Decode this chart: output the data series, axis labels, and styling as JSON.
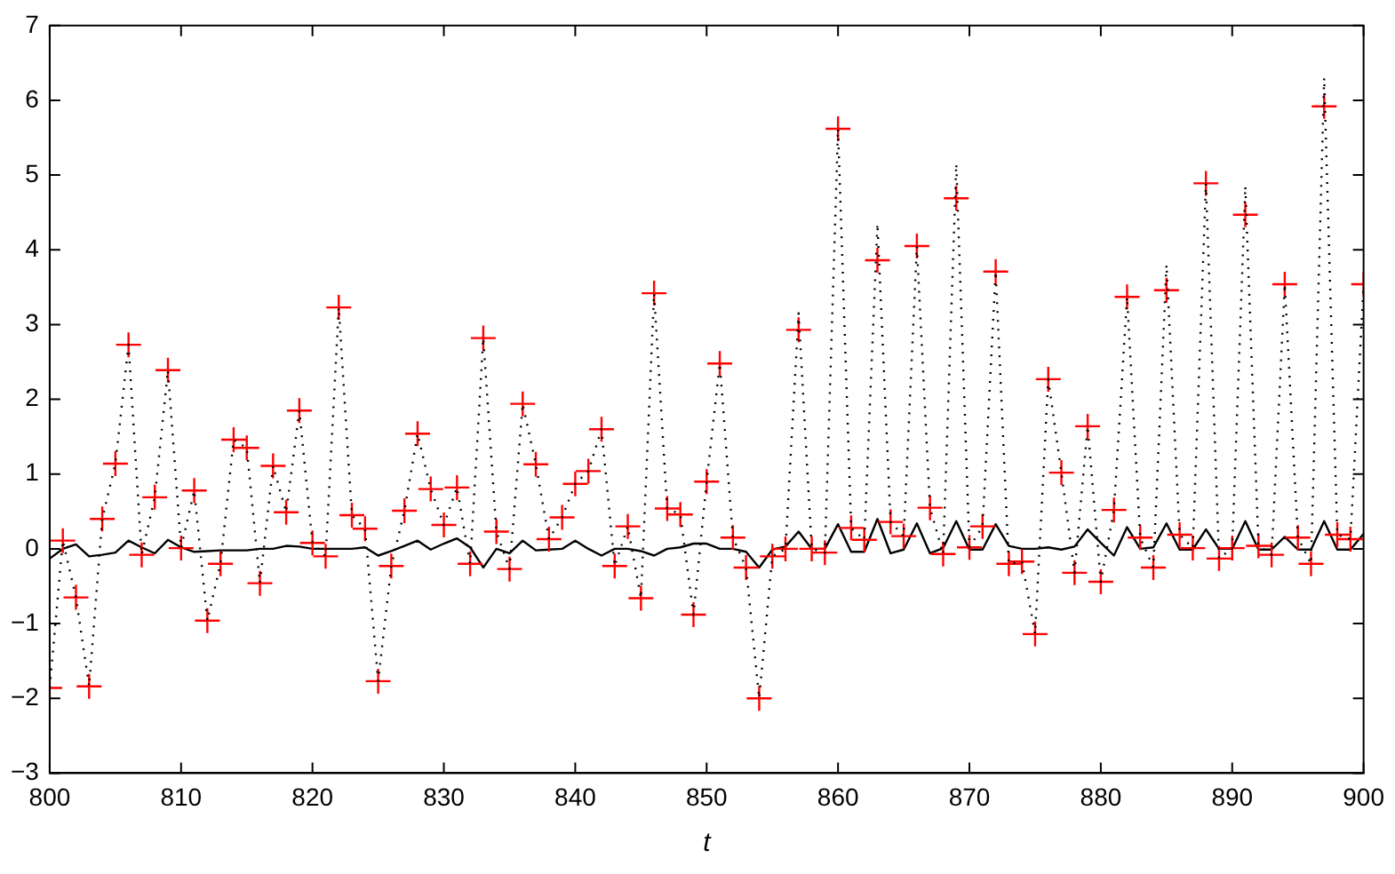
{
  "chart_data": {
    "type": "line",
    "xlabel": "t",
    "x": [
      800,
      801,
      802,
      803,
      804,
      805,
      806,
      807,
      808,
      809,
      810,
      811,
      812,
      813,
      814,
      815,
      816,
      817,
      818,
      819,
      820,
      821,
      822,
      823,
      824,
      825,
      826,
      827,
      828,
      829,
      830,
      831,
      832,
      833,
      834,
      835,
      836,
      837,
      838,
      839,
      840,
      841,
      842,
      843,
      844,
      845,
      846,
      847,
      848,
      849,
      850,
      851,
      852,
      853,
      854,
      855,
      856,
      857,
      858,
      859,
      860,
      861,
      862,
      863,
      864,
      865,
      866,
      867,
      868,
      869,
      870,
      871,
      872,
      873,
      874,
      875,
      876,
      877,
      878,
      879,
      880,
      881,
      882,
      883,
      884,
      885,
      886,
      887,
      888,
      889,
      890,
      891,
      892,
      893,
      894,
      895,
      896,
      897,
      898,
      899,
      900
    ],
    "xlim": [
      800,
      900
    ],
    "xticks": [
      800,
      810,
      820,
      830,
      840,
      850,
      860,
      870,
      880,
      890,
      900
    ],
    "ylim": [
      -3,
      7
    ],
    "yticks": [
      -3,
      -2,
      -1,
      0,
      1,
      2,
      3,
      4,
      5,
      6,
      7
    ],
    "grid": false,
    "legend": false,
    "series": [
      {
        "color": "#000000",
        "line_style": "dotted",
        "marker": "none",
        "values": [
          -1.86,
          0.11,
          -0.65,
          -1.84,
          0.4,
          1.14,
          2.73,
          -0.08,
          0.69,
          2.39,
          0.01,
          0.78,
          -0.96,
          -0.2,
          1.46,
          1.35,
          -0.46,
          1.11,
          0.49,
          1.85,
          0.08,
          -0.1,
          3.23,
          0.45,
          0.27,
          -1.77,
          -0.23,
          0.51,
          1.54,
          0.8,
          0.32,
          0.82,
          -0.2,
          2.82,
          0.23,
          -0.27,
          1.94,
          1.13,
          0.13,
          0.42,
          0.87,
          1.04,
          1.6,
          -0.23,
          0.3,
          -0.66,
          3.42,
          0.54,
          0.46,
          -0.88,
          0.9,
          2.48,
          0.15,
          -0.25,
          -2.0,
          -0.1,
          0.0,
          3.15,
          0.0,
          -0.05,
          5.62,
          0.28,
          0.12,
          4.35,
          0.36,
          0.17,
          4.05,
          0.55,
          -0.07,
          5.15,
          0.02,
          0.3,
          3.71,
          -0.2,
          -0.17,
          -1.14,
          2.27,
          1.02,
          -0.32,
          1.64,
          -0.44,
          0.52,
          3.37,
          0.15,
          -0.25,
          3.8,
          0.19,
          0.01,
          4.89,
          -0.13,
          0.01,
          4.85,
          0.04,
          -0.08,
          3.54,
          0.15,
          -0.2,
          6.3,
          0.19,
          0.13,
          3.54
        ]
      },
      {
        "type": "scatter",
        "color": "#ff0000",
        "marker": "cross",
        "values": [
          -1.86,
          0.11,
          -0.65,
          -1.84,
          0.4,
          1.14,
          2.73,
          -0.08,
          0.69,
          2.39,
          0.01,
          0.78,
          -0.96,
          -0.2,
          1.46,
          1.35,
          -0.46,
          1.11,
          0.49,
          1.85,
          0.08,
          -0.1,
          3.23,
          0.45,
          0.27,
          -1.77,
          -0.23,
          0.51,
          1.54,
          0.8,
          0.32,
          0.82,
          -0.2,
          2.82,
          0.23,
          -0.27,
          1.94,
          1.13,
          0.13,
          0.42,
          0.87,
          1.04,
          1.6,
          -0.23,
          0.3,
          -0.66,
          3.42,
          0.54,
          0.46,
          -0.88,
          0.9,
          2.48,
          0.15,
          -0.25,
          -2.0,
          -0.1,
          0.0,
          2.93,
          0.0,
          -0.05,
          5.62,
          0.28,
          0.12,
          3.86,
          0.36,
          0.17,
          4.05,
          0.55,
          -0.07,
          4.69,
          0.02,
          0.3,
          3.71,
          -0.2,
          -0.17,
          -1.14,
          2.27,
          1.02,
          -0.32,
          1.64,
          -0.44,
          0.52,
          3.37,
          0.15,
          -0.25,
          3.46,
          0.19,
          0.01,
          4.89,
          -0.13,
          0.01,
          4.47,
          0.04,
          -0.08,
          3.54,
          0.15,
          -0.2,
          5.92,
          0.19,
          0.13,
          3.54
        ]
      },
      {
        "color": "#000000",
        "line_style": "solid",
        "marker": "none",
        "values": [
          -0.13,
          0.0,
          0.06,
          -0.1,
          -0.08,
          -0.05,
          0.11,
          0.02,
          -0.06,
          0.12,
          0.02,
          -0.04,
          -0.03,
          -0.02,
          -0.02,
          -0.02,
          0.0,
          0.0,
          0.04,
          0.03,
          0.0,
          0.0,
          0.0,
          0.0,
          0.02,
          -0.09,
          -0.03,
          0.04,
          0.11,
          -0.01,
          0.07,
          0.14,
          0.02,
          -0.25,
          0.0,
          -0.06,
          0.11,
          -0.02,
          -0.01,
          0.0,
          0.11,
          0.0,
          -0.09,
          0.0,
          0.0,
          -0.03,
          -0.09,
          0.0,
          0.02,
          0.07,
          0.07,
          0.0,
          0.0,
          -0.04,
          -0.25,
          -0.01,
          0.03,
          0.23,
          0.0,
          0.0,
          0.33,
          -0.04,
          -0.04,
          0.4,
          -0.06,
          -0.01,
          0.34,
          -0.06,
          0.01,
          0.37,
          -0.01,
          -0.01,
          0.33,
          0.04,
          0.0,
          0.0,
          0.02,
          -0.01,
          0.03,
          0.26,
          0.08,
          -0.09,
          0.29,
          0.0,
          0.02,
          0.34,
          -0.01,
          -0.01,
          0.26,
          0.0,
          0.0,
          0.37,
          -0.01,
          -0.01,
          0.16,
          -0.01,
          -0.01,
          0.37,
          -0.01,
          -0.01,
          0.2
        ]
      }
    ]
  }
}
